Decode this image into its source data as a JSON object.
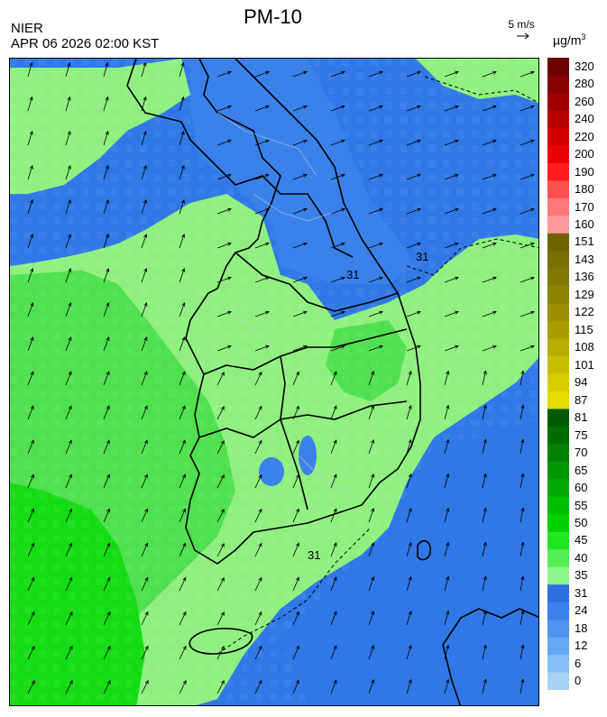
{
  "header": {
    "title": "PM-10",
    "agency": "NIER",
    "datetime": "APR 06 2026 02:00 KST",
    "wind_reference": "5 m/s",
    "unit": "µg/m",
    "unit_exp": "3"
  },
  "map": {
    "contour_labels": [
      "31",
      "31",
      "31"
    ],
    "colors": {
      "sea_blue": "#2f78e6",
      "green_light": "#8ff07f",
      "green_mid": "#4fe04f",
      "green_bright": "#14dc14",
      "boundary": "#000000"
    }
  },
  "legend": {
    "bands": [
      {
        "label": "320",
        "color": "#6e0000"
      },
      {
        "label": "280",
        "color": "#860000"
      },
      {
        "label": "260",
        "color": "#9e0000"
      },
      {
        "label": "240",
        "color": "#b80000"
      },
      {
        "label": "220",
        "color": "#d20000"
      },
      {
        "label": "200",
        "color": "#ec0000"
      },
      {
        "label": "190",
        "color": "#ff1e1e"
      },
      {
        "label": "180",
        "color": "#ff5050"
      },
      {
        "label": "170",
        "color": "#ff7878"
      },
      {
        "label": "160",
        "color": "#ff9a9a"
      },
      {
        "label": "151",
        "color": "#6e6400"
      },
      {
        "label": "143",
        "color": "#787000"
      },
      {
        "label": "136",
        "color": "#827a00"
      },
      {
        "label": "129",
        "color": "#8c8400"
      },
      {
        "label": "122",
        "color": "#9a9000"
      },
      {
        "label": "115",
        "color": "#a89e00"
      },
      {
        "label": "108",
        "color": "#b8ae00"
      },
      {
        "label": "101",
        "color": "#c8be00"
      },
      {
        "label": "94",
        "color": "#d6cc00"
      },
      {
        "label": "87",
        "color": "#e6dc00"
      },
      {
        "label": "81",
        "color": "#005a00"
      },
      {
        "label": "75",
        "color": "#006e00"
      },
      {
        "label": "70",
        "color": "#008200"
      },
      {
        "label": "65",
        "color": "#009600"
      },
      {
        "label": "60",
        "color": "#00aa00"
      },
      {
        "label": "55",
        "color": "#00be00"
      },
      {
        "label": "50",
        "color": "#00d200"
      },
      {
        "label": "45",
        "color": "#22e622"
      },
      {
        "label": "40",
        "color": "#55ef55"
      },
      {
        "label": "35",
        "color": "#8ff78f"
      },
      {
        "label": "31",
        "color": "#2c6fe0"
      },
      {
        "label": "24",
        "color": "#3a82ea"
      },
      {
        "label": "18",
        "color": "#4c94ee"
      },
      {
        "label": "12",
        "color": "#62a8f2"
      },
      {
        "label": "6",
        "color": "#86bff5"
      },
      {
        "label": "0",
        "color": "#a9d2f7"
      }
    ]
  }
}
